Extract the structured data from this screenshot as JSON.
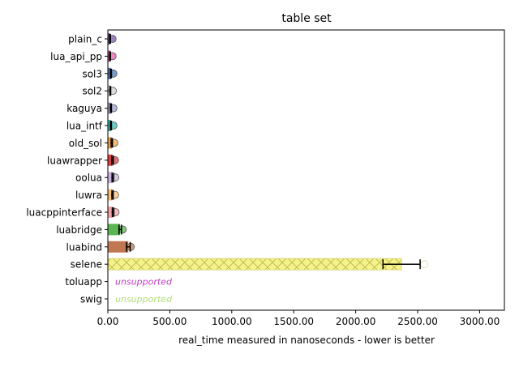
{
  "chart_data": {
    "type": "bar",
    "orientation": "horizontal",
    "title": "table set",
    "xlabel": "real_time measured in nanoseconds - lower is better",
    "ylabel": "",
    "xlim": [
      0,
      3200
    ],
    "xticks": [
      0,
      500,
      1000,
      1500,
      2000,
      2500,
      3000
    ],
    "xtick_labels": [
      "0.00",
      "500.00",
      "1000.00",
      "1500.00",
      "2000.00",
      "2500.00",
      "3000.00"
    ],
    "grid": false,
    "legend": "none",
    "categories": [
      "plain_c",
      "lua_api_pp",
      "sol3",
      "sol2",
      "kaguya",
      "lua_intf",
      "old_sol",
      "luawrapper",
      "oolua",
      "luwra",
      "luacppinterface",
      "luabridge",
      "luabind",
      "selene",
      "toluapp",
      "swig"
    ],
    "values": [
      18,
      18,
      25,
      20,
      25,
      25,
      32,
      38,
      40,
      38,
      42,
      100,
      165,
      2370,
      null,
      null
    ],
    "errors": [
      3,
      3,
      4,
      3,
      4,
      4,
      5,
      6,
      6,
      5,
      6,
      10,
      15,
      150,
      null,
      null
    ],
    "colors": [
      "#7a5aa6",
      "#e05fae",
      "#4a7bb7",
      "#d0d0d0",
      "#a0a0c8",
      "#3bbcb0",
      "#f0a040",
      "#d94040",
      "#c8b4dc",
      "#f5c07a",
      "#f4a0a8",
      "#5ab552",
      "#c07850",
      "#f6f28a",
      "#c040c8",
      "#b4e07a"
    ],
    "hatched": [
      false,
      false,
      false,
      false,
      false,
      false,
      false,
      false,
      false,
      false,
      false,
      false,
      false,
      true,
      false,
      false
    ],
    "unsupported_label": "unsupported"
  }
}
